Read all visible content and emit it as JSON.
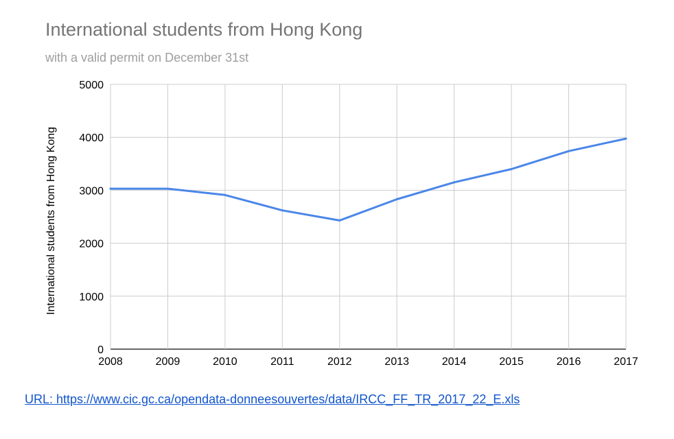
{
  "chart_data": {
    "type": "line",
    "title": "International students from Hong Kong",
    "subtitle": "with a valid permit on December 31st",
    "xlabel": "",
    "ylabel": "International students from Hong Kong",
    "x": [
      "2008",
      "2009",
      "2010",
      "2011",
      "2012",
      "2013",
      "2014",
      "2015",
      "2016",
      "2017"
    ],
    "series": [
      {
        "values": [
          3030,
          3030,
          2910,
          2620,
          2430,
          2830,
          3150,
          3400,
          3740,
          3975
        ]
      }
    ],
    "ylim": [
      0,
      5000
    ],
    "yticks": [
      "0",
      "1000",
      "2000",
      "3000",
      "4000",
      "5000"
    ],
    "grid": true,
    "legend": "none",
    "line_color": "#4a86e8"
  },
  "source": {
    "text": "URL: https://www.cic.gc.ca/opendata-donneesouvertes/data/IRCC_FF_TR_2017_22_E.xls"
  }
}
